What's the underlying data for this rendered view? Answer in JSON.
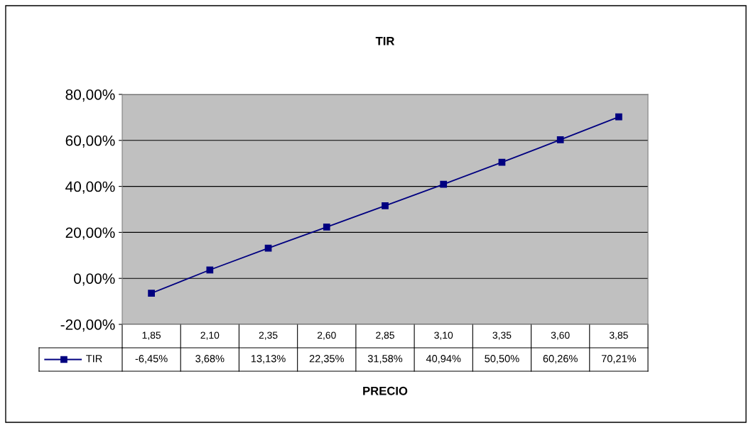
{
  "chart_data": {
    "type": "line",
    "title": "TIR",
    "xlabel": "PRECIO",
    "categories": [
      "1,85",
      "2,10",
      "2,35",
      "2,60",
      "2,85",
      "3,10",
      "3,35",
      "3,60",
      "3,85"
    ],
    "series": [
      {
        "name": "TIR",
        "color": "#000080",
        "values": [
          -6.45,
          3.68,
          13.13,
          22.35,
          31.58,
          40.94,
          50.5,
          60.26,
          70.21
        ],
        "value_labels": [
          "-6,45%",
          "3,68%",
          "13,13%",
          "22,35%",
          "31,58%",
          "40,94%",
          "50,50%",
          "60,26%",
          "70,21%"
        ]
      }
    ],
    "ylim": [
      -20,
      80
    ],
    "yticks": [
      {
        "value": -20,
        "label": "-20,00%"
      },
      {
        "value": 0,
        "label": "0,00%"
      },
      {
        "value": 20,
        "label": "20,00%"
      },
      {
        "value": 40,
        "label": "40,00%"
      },
      {
        "value": 60,
        "label": "60,00%"
      },
      {
        "value": 80,
        "label": "80,00%"
      }
    ],
    "grid": "y",
    "legend": "bottom left",
    "marker": "square",
    "line_style": "solid"
  }
}
